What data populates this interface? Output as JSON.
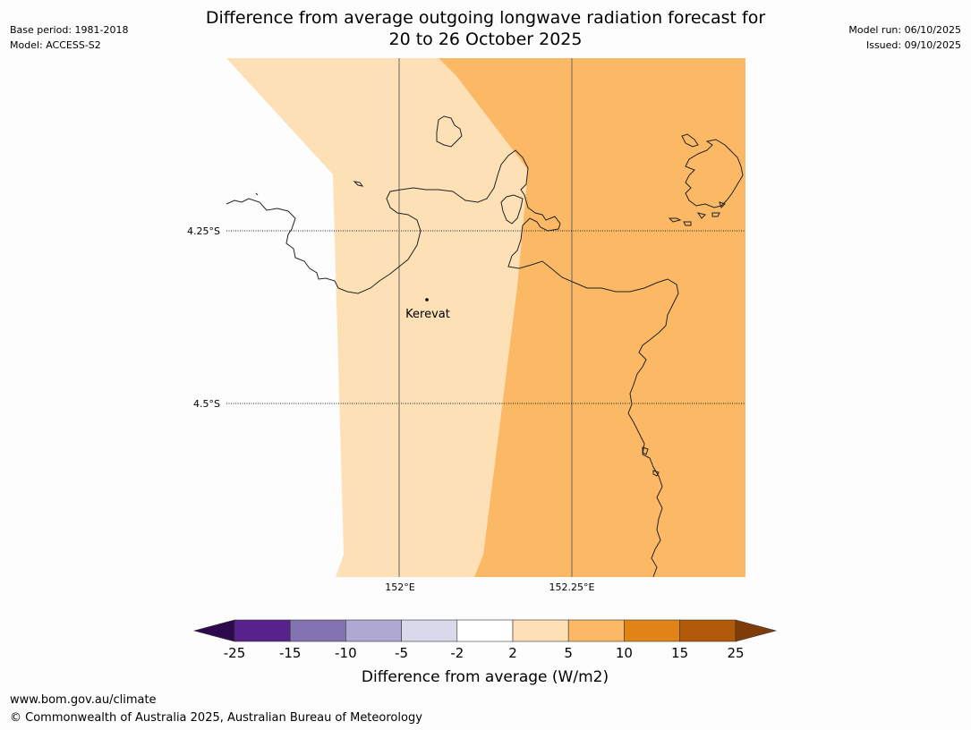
{
  "header": {
    "title_line1": "Difference from average outgoing longwave radiation forecast for",
    "title_line2": "20 to 26 October 2025",
    "base_period": "Base period: 1981-2018",
    "model": "Model: ACCESS-S2",
    "model_run": "Model run: 06/10/2025",
    "issued": "Issued: 09/10/2025"
  },
  "map": {
    "place_label": "Kerevat",
    "lat_labels": [
      "4.25°S",
      "4.5°S"
    ],
    "lon_labels": [
      "152°E",
      "152.25°E"
    ],
    "colors": {
      "band_2_5": "#fde0b6",
      "band_5_10": "#fbb965",
      "coast": "#222222"
    }
  },
  "legend": {
    "ticks": [
      "-25",
      "-15",
      "-10",
      "-5",
      "-2",
      "2",
      "5",
      "10",
      "15",
      "25"
    ],
    "label": "Difference from average (W/m2)",
    "colors": [
      "#2d0a4e",
      "#57228a",
      "#8272b0",
      "#afa8d2",
      "#d9d9eb",
      "#ffffff",
      "#fde0b6",
      "#fbb965",
      "#e08515",
      "#b35a08",
      "#7f3b08"
    ]
  },
  "footer": {
    "url": "www.bom.gov.au/climate",
    "copyright": "© Commonwealth of Australia 2025, Australian Bureau of Meteorology"
  }
}
